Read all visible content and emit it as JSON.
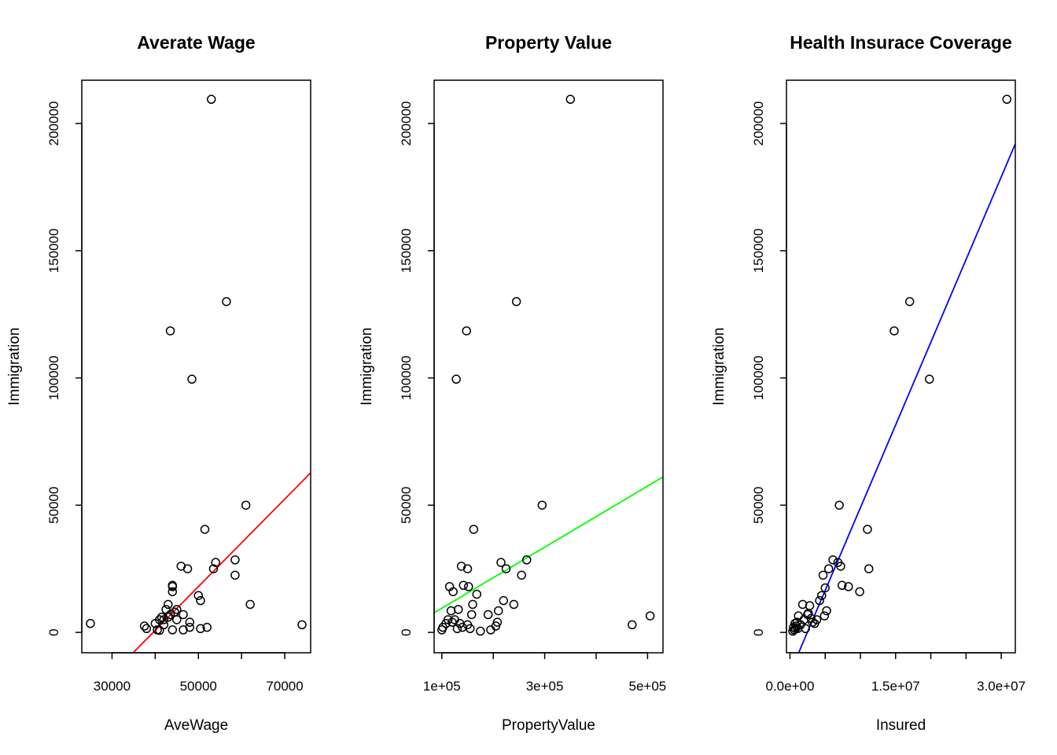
{
  "chart_data": [
    {
      "type": "scatter",
      "title": "Averate Wage",
      "xlabel": "AveWage",
      "ylabel": "Immigration",
      "xlim": [
        23000,
        76000
      ],
      "ylim": [
        -8000,
        217000
      ],
      "xticks": [
        30000,
        40000,
        50000,
        60000,
        70000
      ],
      "xtick_labels": [
        "30000",
        "",
        "50000",
        "",
        "70000"
      ],
      "yticks": [
        0,
        50000,
        100000,
        150000,
        200000
      ],
      "ytick_labels": [
        "0",
        "50000",
        "100000",
        "150000",
        "200000"
      ],
      "fit_line": {
        "color": "#ff0000",
        "intercept": -68000,
        "slope": 1.72
      },
      "points": [
        [
          25000,
          3500
        ],
        [
          37500,
          2500
        ],
        [
          38000,
          1500
        ],
        [
          40000,
          3500
        ],
        [
          40500,
          1000
        ],
        [
          41000,
          5000
        ],
        [
          41500,
          6000
        ],
        [
          41000,
          800
        ],
        [
          42000,
          3000
        ],
        [
          42500,
          9000
        ],
        [
          43000,
          11000
        ],
        [
          43000,
          6000
        ],
        [
          43500,
          7000
        ],
        [
          43500,
          118500
        ],
        [
          44000,
          18500
        ],
        [
          44000,
          16000
        ],
        [
          44500,
          8000
        ],
        [
          44000,
          1000
        ],
        [
          45000,
          5000
        ],
        [
          45000,
          9000
        ],
        [
          46000,
          26000
        ],
        [
          46500,
          7000
        ],
        [
          46500,
          1000
        ],
        [
          47500,
          25000
        ],
        [
          48000,
          4000
        ],
        [
          48000,
          2000
        ],
        [
          48500,
          99500
        ],
        [
          50000,
          14500
        ],
        [
          50500,
          12500
        ],
        [
          50500,
          1500
        ],
        [
          51500,
          40500
        ],
        [
          52000,
          2000
        ],
        [
          53000,
          209500
        ],
        [
          53500,
          25000
        ],
        [
          54000,
          27500
        ],
        [
          56500,
          130000
        ],
        [
          58500,
          28500
        ],
        [
          58500,
          22500
        ],
        [
          61000,
          50000
        ],
        [
          62000,
          11000
        ],
        [
          74000,
          3000
        ],
        [
          44000,
          18000
        ],
        [
          42000,
          5000
        ]
      ]
    },
    {
      "type": "scatter",
      "title": "Property Value",
      "xlabel": "PropertyValue",
      "ylabel": "Immigration",
      "xlim": [
        85000,
        530000
      ],
      "ylim": [
        -8000,
        217000
      ],
      "xticks": [
        100000,
        200000,
        300000,
        400000,
        500000
      ],
      "xtick_labels": [
        "1e+05",
        "",
        "3e+05",
        "",
        "5e+05"
      ],
      "yticks": [
        0,
        50000,
        100000,
        150000,
        200000
      ],
      "ytick_labels": [
        "0",
        "50000",
        "100000",
        "150000",
        "200000"
      ],
      "fit_line": {
        "color": "#00ff00",
        "intercept": -2500,
        "slope": 0.12
      },
      "points": [
        [
          100000,
          1000
        ],
        [
          102000,
          2000
        ],
        [
          108000,
          3500
        ],
        [
          112000,
          5000
        ],
        [
          115000,
          18000
        ],
        [
          118000,
          8500
        ],
        [
          120000,
          4000
        ],
        [
          122000,
          16000
        ],
        [
          125000,
          5000
        ],
        [
          128000,
          99500
        ],
        [
          130000,
          1500
        ],
        [
          132000,
          9000
        ],
        [
          135000,
          3500
        ],
        [
          138000,
          26000
        ],
        [
          140000,
          2000
        ],
        [
          142000,
          18500
        ],
        [
          148000,
          118500
        ],
        [
          150000,
          25000
        ],
        [
          152000,
          18000
        ],
        [
          155000,
          1500
        ],
        [
          158000,
          7000
        ],
        [
          160000,
          11000
        ],
        [
          162000,
          40500
        ],
        [
          168000,
          15000
        ],
        [
          175000,
          500
        ],
        [
          190000,
          7000
        ],
        [
          195000,
          1000
        ],
        [
          205000,
          2500
        ],
        [
          210000,
          8500
        ],
        [
          215000,
          27500
        ],
        [
          220000,
          12500
        ],
        [
          225000,
          25000
        ],
        [
          240000,
          11000
        ],
        [
          245000,
          130000
        ],
        [
          255000,
          22500
        ],
        [
          265000,
          28500
        ],
        [
          295000,
          50000
        ],
        [
          350000,
          209500
        ],
        [
          470000,
          3000
        ],
        [
          505000,
          6500
        ],
        [
          208000,
          4000
        ],
        [
          150000,
          3000
        ]
      ]
    },
    {
      "type": "scatter",
      "title": "Health Insurace Coverage",
      "xlabel": "Insured",
      "ylabel": "Immigration",
      "xlim": [
        -500000,
        32000000
      ],
      "ylim": [
        -8000,
        217000
      ],
      "xticks": [
        0,
        5000000,
        10000000,
        15000000,
        20000000,
        25000000,
        30000000
      ],
      "xtick_labels": [
        "0.0e+00",
        "",
        "",
        "1.5e+07",
        "",
        "",
        "3.0e+07"
      ],
      "yticks": [
        0,
        50000,
        100000,
        150000,
        200000
      ],
      "ytick_labels": [
        "0",
        "50000",
        "100000",
        "150000",
        "200000"
      ],
      "fit_line": {
        "color": "#0000ff",
        "intercept": -16000,
        "slope": 0.0065
      },
      "points": [
        [
          400000,
          500
        ],
        [
          500000,
          2000
        ],
        [
          600000,
          1000
        ],
        [
          700000,
          3500
        ],
        [
          800000,
          1500
        ],
        [
          900000,
          2500
        ],
        [
          1000000,
          4000
        ],
        [
          1200000,
          6500
        ],
        [
          1500000,
          3000
        ],
        [
          1800000,
          11000
        ],
        [
          2000000,
          5000
        ],
        [
          2200000,
          1500
        ],
        [
          2500000,
          7000
        ],
        [
          2800000,
          10500
        ],
        [
          3000000,
          5500
        ],
        [
          3200000,
          4000
        ],
        [
          3500000,
          3500
        ],
        [
          3800000,
          5000
        ],
        [
          4200000,
          12500
        ],
        [
          4500000,
          14500
        ],
        [
          4700000,
          22500
        ],
        [
          4900000,
          6500
        ],
        [
          5000000,
          17500
        ],
        [
          5200000,
          8500
        ],
        [
          5500000,
          25000
        ],
        [
          6100000,
          28500
        ],
        [
          6800000,
          27500
        ],
        [
          7400000,
          18500
        ],
        [
          7200000,
          26000
        ],
        [
          7000000,
          50000
        ],
        [
          8300000,
          18000
        ],
        [
          9900000,
          16000
        ],
        [
          11000000,
          40500
        ],
        [
          11200000,
          25000
        ],
        [
          14800000,
          118500
        ],
        [
          17000000,
          130000
        ],
        [
          19800000,
          99500
        ],
        [
          30800000,
          209500
        ],
        [
          2600000,
          7500
        ],
        [
          1100000,
          1500
        ]
      ]
    }
  ]
}
